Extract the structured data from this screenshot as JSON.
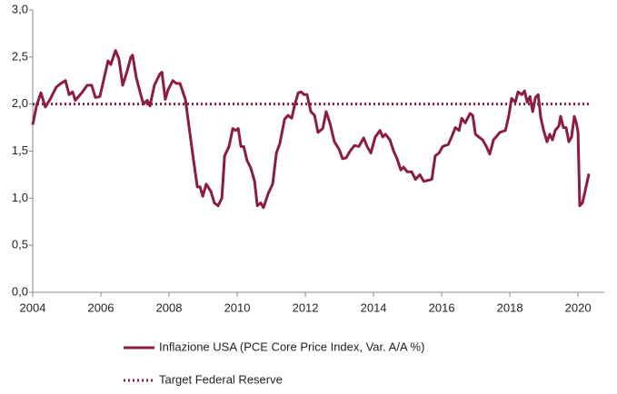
{
  "chart_data": {
    "type": "line",
    "xlim": [
      2004,
      2020.77
    ],
    "xticks": [
      2004,
      2006,
      2008,
      2010,
      2012,
      2014,
      2016,
      2018,
      2020
    ],
    "ylim": [
      0,
      3
    ],
    "yticks": [
      {
        "value": 0,
        "label": "0,0"
      },
      {
        "value": 0.5,
        "label": "0,5"
      },
      {
        "value": 1,
        "label": "1,0"
      },
      {
        "value": 1.5,
        "label": "1,5"
      },
      {
        "value": 2,
        "label": "2,0"
      },
      {
        "value": 2.5,
        "label": "2,5"
      },
      {
        "value": 3,
        "label": "3,0"
      }
    ],
    "grid": false,
    "legend": "bottom",
    "series": [
      {
        "name": "Inflazione USA (PCE Core Price Index, Var. A/A %)",
        "color": "#8c1d40",
        "style": "solid",
        "x": [
          2004.0,
          2004.11,
          2004.24,
          2004.37,
          2004.51,
          2004.69,
          2004.83,
          2004.96,
          2005.07,
          2005.17,
          2005.25,
          2005.44,
          2005.6,
          2005.73,
          2005.84,
          2005.97,
          2006.11,
          2006.21,
          2006.29,
          2006.43,
          2006.53,
          2006.64,
          2006.77,
          2006.88,
          2006.93,
          2007.04,
          2007.17,
          2007.25,
          2007.36,
          2007.44,
          2007.57,
          2007.73,
          2007.79,
          2007.89,
          2007.97,
          2008.11,
          2008.21,
          2008.32,
          2008.48,
          2008.59,
          2008.72,
          2008.83,
          2008.91,
          2008.99,
          2009.09,
          2009.23,
          2009.33,
          2009.44,
          2009.55,
          2009.63,
          2009.76,
          2009.87,
          2009.95,
          2010.03,
          2010.11,
          2010.19,
          2010.29,
          2010.4,
          2010.51,
          2010.59,
          2010.69,
          2010.77,
          2010.91,
          2011.04,
          2011.15,
          2011.25,
          2011.39,
          2011.49,
          2011.6,
          2011.68,
          2011.79,
          2011.87,
          2011.97,
          2012.05,
          2012.16,
          2012.27,
          2012.37,
          2012.51,
          2012.61,
          2012.72,
          2012.85,
          2012.99,
          2013.09,
          2013.2,
          2013.31,
          2013.44,
          2013.57,
          2013.71,
          2013.81,
          2013.92,
          2014.05,
          2014.19,
          2014.27,
          2014.35,
          2014.48,
          2014.59,
          2014.69,
          2014.8,
          2014.88,
          2014.99,
          2015.12,
          2015.23,
          2015.36,
          2015.47,
          2015.6,
          2015.71,
          2015.81,
          2015.92,
          2016.03,
          2016.19,
          2016.29,
          2016.4,
          2016.51,
          2016.59,
          2016.69,
          2016.83,
          2016.91,
          2016.99,
          2017.09,
          2017.2,
          2017.31,
          2017.41,
          2017.52,
          2017.71,
          2017.87,
          2017.97,
          2018.05,
          2018.16,
          2018.24,
          2018.35,
          2018.43,
          2018.51,
          2018.59,
          2018.67,
          2018.75,
          2018.83,
          2018.91,
          2018.99,
          2019.09,
          2019.17,
          2019.25,
          2019.33,
          2019.44,
          2019.49,
          2019.57,
          2019.65,
          2019.73,
          2019.81,
          2019.89,
          2019.95,
          2020.0,
          2020.05,
          2020.13,
          2020.21,
          2020.32
        ],
        "values": [
          1.78,
          1.98,
          2.12,
          1.97,
          2.05,
          2.18,
          2.22,
          2.25,
          2.1,
          2.13,
          2.04,
          2.12,
          2.2,
          2.2,
          2.07,
          2.08,
          2.3,
          2.46,
          2.42,
          2.57,
          2.48,
          2.2,
          2.35,
          2.5,
          2.52,
          2.28,
          2.1,
          2.0,
          2.04,
          1.98,
          2.2,
          2.32,
          2.34,
          2.05,
          2.15,
          2.25,
          2.22,
          2.22,
          2.05,
          1.75,
          1.4,
          1.12,
          1.12,
          1.02,
          1.15,
          1.07,
          0.95,
          0.92,
          1.0,
          1.45,
          1.55,
          1.74,
          1.72,
          1.74,
          1.55,
          1.55,
          1.4,
          1.32,
          1.18,
          0.92,
          0.95,
          0.9,
          1.05,
          1.15,
          1.48,
          1.58,
          1.84,
          1.88,
          1.85,
          1.98,
          2.12,
          2.13,
          2.1,
          2.1,
          1.92,
          1.88,
          1.7,
          1.74,
          1.92,
          1.8,
          1.6,
          1.52,
          1.42,
          1.43,
          1.5,
          1.56,
          1.55,
          1.64,
          1.55,
          1.48,
          1.65,
          1.72,
          1.65,
          1.68,
          1.62,
          1.5,
          1.42,
          1.3,
          1.33,
          1.28,
          1.28,
          1.2,
          1.25,
          1.18,
          1.19,
          1.2,
          1.45,
          1.48,
          1.55,
          1.57,
          1.65,
          1.75,
          1.72,
          1.85,
          1.8,
          1.9,
          1.88,
          1.68,
          1.65,
          1.62,
          1.55,
          1.47,
          1.62,
          1.7,
          1.72,
          1.88,
          2.06,
          2.02,
          2.13,
          2.1,
          2.14,
          2.02,
          2.08,
          1.92,
          2.07,
          2.1,
          1.85,
          1.72,
          1.6,
          1.68,
          1.62,
          1.72,
          1.77,
          1.87,
          1.75,
          1.75,
          1.6,
          1.65,
          1.87,
          1.8,
          1.7,
          0.92,
          0.95,
          1.08,
          1.26
        ]
      },
      {
        "name": "Target Federal Reserve",
        "color": "#8c1d40",
        "style": "dotted",
        "x": [
          2004,
          2020.32
        ],
        "values": [
          2,
          2
        ]
      }
    ]
  }
}
